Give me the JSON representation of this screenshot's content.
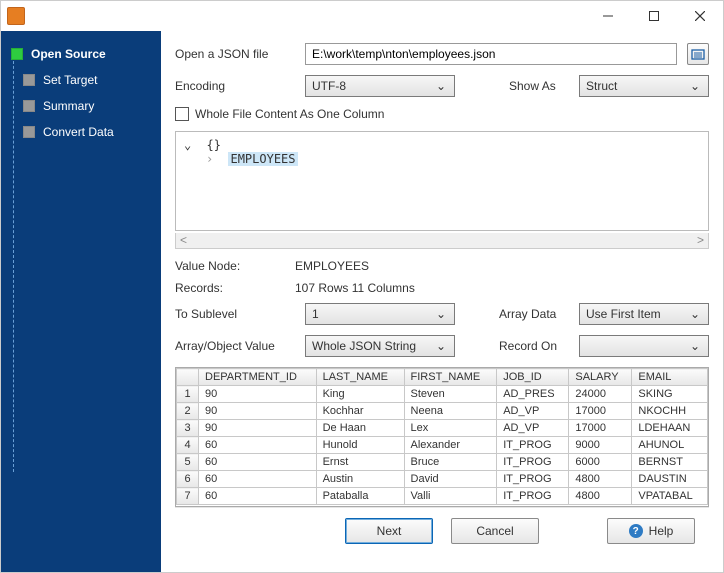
{
  "sidebar": {
    "items": [
      {
        "label": "Open Source",
        "active": true
      },
      {
        "label": "Set Target",
        "active": false
      },
      {
        "label": "Summary",
        "active": false
      },
      {
        "label": "Convert Data",
        "active": false
      }
    ]
  },
  "form": {
    "open_label": "Open a JSON file",
    "open_value": "E:\\work\\temp\\nton\\employees.json",
    "encoding_label": "Encoding",
    "encoding_value": "UTF-8",
    "showas_label": "Show As",
    "showas_value": "Struct",
    "whole_file_label": "Whole File Content As One Column",
    "value_node_label": "Value Node:",
    "value_node": "EMPLOYEES",
    "records_label": "Records:",
    "records": "107 Rows    11 Columns",
    "to_sublevel_label": "To Sublevel",
    "to_sublevel_value": "1",
    "array_data_label": "Array Data",
    "array_data_value": "Use First Item",
    "array_obj_label": "Array/Object Value",
    "array_obj_value": "Whole JSON String",
    "record_on_label": "Record On",
    "record_on_value": ""
  },
  "tree": {
    "root": "{}",
    "child": "EMPLOYEES"
  },
  "table": {
    "columns": [
      "DEPARTMENT_ID",
      "LAST_NAME",
      "FIRST_NAME",
      "JOB_ID",
      "SALARY",
      "EMAIL"
    ],
    "rows": [
      [
        "90",
        "King",
        "Steven",
        "AD_PRES",
        "24000",
        "SKING"
      ],
      [
        "90",
        "Kochhar",
        "Neena",
        "AD_VP",
        "17000",
        "NKOCHH"
      ],
      [
        "90",
        "De Haan",
        "Lex",
        "AD_VP",
        "17000",
        "LDEHAAN"
      ],
      [
        "60",
        "Hunold",
        "Alexander",
        "IT_PROG",
        "9000",
        "AHUNOL"
      ],
      [
        "60",
        "Ernst",
        "Bruce",
        "IT_PROG",
        "6000",
        "BERNST"
      ],
      [
        "60",
        "Austin",
        "David",
        "IT_PROG",
        "4800",
        "DAUSTIN"
      ],
      [
        "60",
        "Pataballa",
        "Valli",
        "IT_PROG",
        "4800",
        "VPATABAL"
      ]
    ]
  },
  "buttons": {
    "next": "Next",
    "cancel": "Cancel",
    "help": "Help"
  }
}
